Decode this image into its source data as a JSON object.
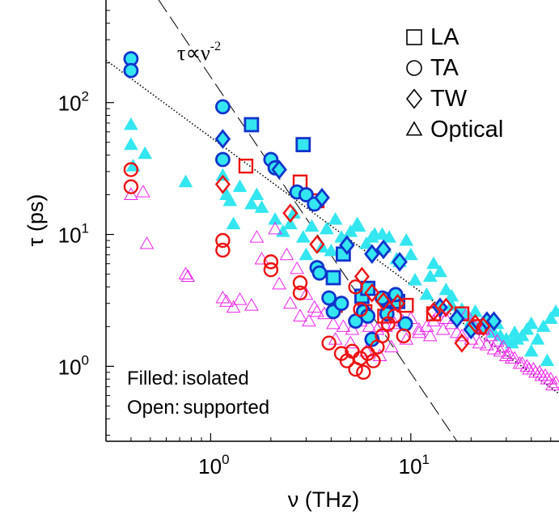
{
  "chart_data": {
    "type": "scatter",
    "xlabel": "ν (THz)",
    "ylabel": "τ (ps)",
    "x_scale": "log",
    "y_scale": "log",
    "xlim": [
      0.3,
      55
    ],
    "ylim": [
      0.27,
      600
    ],
    "x_ticks": [
      {
        "value": 1,
        "base": "10",
        "exp": "0"
      },
      {
        "value": 10,
        "base": "10",
        "exp": "1"
      }
    ],
    "y_ticks": [
      {
        "value": 1,
        "base": "10",
        "exp": "0"
      },
      {
        "value": 10,
        "base": "10",
        "exp": "1"
      },
      {
        "value": 100,
        "base": "10",
        "exp": "2"
      }
    ],
    "grid": false,
    "legend_position": "top-right",
    "legend": [
      {
        "marker": "square",
        "label": "LA"
      },
      {
        "marker": "circle",
        "label": "TA"
      },
      {
        "marker": "diamond",
        "label": "TW"
      },
      {
        "marker": "triangle",
        "label": "Optical"
      }
    ],
    "notes": [
      {
        "key": "Filled",
        "sep": ":",
        "value": "isolated"
      },
      {
        "key": "Open",
        "sep": ":",
        "value": "supported"
      }
    ],
    "annotation": {
      "text": "τ∝ν",
      "exp": "-2"
    },
    "colors": {
      "isolated_fill": "#33e6f0",
      "isolated_edge": "#1133cc",
      "supported_edge": "#ee1111",
      "optical_isolated": "#33e6f0",
      "optical_supported": "#ee22ee",
      "axis": "#000000"
    },
    "reference_lines": [
      {
        "name": "τ ∝ ν^-2",
        "style": "dashed",
        "points": [
          [
            0.55,
            600
          ],
          [
            17,
            0.27
          ]
        ]
      },
      {
        "name": "fit",
        "style": "dotted",
        "points": [
          [
            0.3,
            210
          ],
          [
            55,
            0.62
          ]
        ]
      }
    ],
    "series": [
      {
        "name": "LA",
        "marker": "square",
        "fill": "filled",
        "group": "isolated",
        "x": [
          1.6,
          2.9,
          4.1,
          4.6,
          5.7,
          6.1,
          7.7,
          8.6
        ],
        "y": [
          68,
          48,
          4.7,
          7.1,
          3.4,
          3.9,
          3.2,
          3.1
        ]
      },
      {
        "name": "LA",
        "marker": "square",
        "fill": "open",
        "group": "supported",
        "x": [
          1.5,
          2.8,
          3.4,
          4.2,
          5.9,
          7.4,
          9.5,
          13,
          18,
          22
        ],
        "y": [
          33,
          25,
          18,
          2.9,
          2.6,
          2.4,
          2.9,
          2.5,
          2.5,
          2.0
        ]
      },
      {
        "name": "TA",
        "marker": "circle",
        "fill": "filled",
        "group": "isolated",
        "x": [
          0.4,
          0.4,
          1.15,
          1.15,
          2.0,
          2.1,
          2.7,
          3.0,
          3.3,
          3.4,
          3.5,
          3.9,
          4.1,
          4.5,
          5.3,
          5.8,
          6.1,
          6.4,
          7.2,
          7.6,
          8.4,
          9.4
        ],
        "y": [
          215,
          175,
          93,
          37,
          37,
          32,
          21,
          20,
          17,
          5.6,
          5.1,
          3.3,
          2.6,
          3.0,
          2.2,
          2.6,
          2.4,
          1.6,
          3.3,
          2.5,
          3.5,
          2.1
        ]
      },
      {
        "name": "TA",
        "marker": "circle",
        "fill": "open",
        "group": "supported",
        "x": [
          0.4,
          0.4,
          1.15,
          1.15,
          2.0,
          2.0,
          2.8,
          2.8,
          3.9,
          4.5,
          4.8,
          5.1,
          5.3,
          5.6,
          5.8,
          6.1,
          6.5,
          6.8,
          7.2,
          7.7,
          8.3,
          9.2,
          5.6,
          5.3
        ],
        "y": [
          31,
          23,
          9.0,
          7.6,
          6.2,
          5.4,
          4.3,
          3.6,
          1.5,
          1.25,
          1.1,
          1.3,
          0.95,
          1.15,
          0.9,
          1.25,
          1.1,
          1.4,
          1.7,
          2.1,
          2.4,
          1.7,
          2.7,
          4.0
        ]
      },
      {
        "name": "TW",
        "marker": "diamond",
        "fill": "filled",
        "group": "isolated",
        "x": [
          1.15,
          2.2,
          3.6,
          4.8,
          6.4,
          7.3,
          8.8,
          14,
          17,
          20,
          24,
          26
        ],
        "y": [
          53,
          31,
          19,
          8.3,
          7.1,
          7.7,
          6.2,
          2.8,
          2.3,
          1.9,
          2.2,
          2.2
        ]
      },
      {
        "name": "TW",
        "marker": "diamond",
        "fill": "open",
        "group": "supported",
        "x": [
          1.15,
          2.5,
          3.4,
          5.7,
          6.4,
          7.3,
          8.6,
          13,
          15,
          18,
          21,
          23
        ],
        "y": [
          24,
          14.5,
          8.4,
          4.8,
          3.6,
          3.1,
          3.0,
          2.6,
          2.8,
          1.5,
          2.1,
          2.0
        ]
      },
      {
        "name": "Optical",
        "marker": "triangle",
        "fill": "filled",
        "group": "isolated",
        "x": [
          0.4,
          0.4,
          0.41,
          0.47,
          0.75,
          1.15,
          1.2,
          1.25,
          1.4,
          1.6,
          1.8,
          2.1,
          2.5,
          2.9,
          3.2,
          3.6,
          4.0,
          4.5,
          5.0,
          5.5,
          6.0,
          6.6,
          7.2,
          7.8,
          8.5,
          9.5,
          10.5,
          12,
          13,
          14,
          15,
          16,
          17,
          18,
          19,
          20,
          22,
          24,
          26,
          28,
          30,
          32,
          34,
          36,
          38,
          40,
          43,
          46,
          50,
          53,
          1.3,
          1.7,
          2.3,
          3.0,
          3.8,
          4.6,
          5.4,
          6.4,
          7.4,
          8.8,
          10,
          12.5,
          16,
          21,
          27,
          33,
          40,
          48,
          2.6,
          4.2
        ],
        "y": [
          68,
          48,
          33,
          41,
          25,
          28,
          20,
          18,
          23,
          17,
          16,
          13,
          12,
          9.5,
          11.5,
          8.0,
          7.5,
          9.5,
          10.5,
          11.5,
          8.5,
          10,
          10,
          9.5,
          6.5,
          9.0,
          4.5,
          3.5,
          6.0,
          5.2,
          3.8,
          2.9,
          2.5,
          2.7,
          2.4,
          2.2,
          2.0,
          1.9,
          1.8,
          1.7,
          1.6,
          1.5,
          1.6,
          1.7,
          1.9,
          2.1,
          1.6,
          2.0,
          2.3,
          2.6,
          12,
          20,
          10.5,
          7.0,
          11,
          7.8,
          12,
          9.5,
          8.0,
          6.2,
          7.0,
          4.8,
          3.4,
          2.6,
          2.1,
          1.8,
          1.3,
          1.1,
          14.5,
          13
        ]
      },
      {
        "name": "Optical",
        "marker": "triangle",
        "fill": "open",
        "group": "supported",
        "x": [
          0.4,
          0.46,
          0.48,
          0.75,
          0.77,
          1.15,
          1.2,
          1.3,
          1.4,
          1.6,
          1.8,
          2.1,
          2.4,
          2.7,
          3.0,
          3.3,
          3.7,
          4.1,
          4.6,
          5.1,
          5.6,
          6.2,
          6.8,
          7.5,
          8.3,
          9.1,
          10,
          11,
          12,
          13,
          14,
          15,
          16,
          17,
          18,
          20,
          22,
          24,
          26,
          28,
          30,
          32,
          35,
          38,
          41,
          44,
          47,
          50,
          53,
          1.7,
          2.2,
          2.8,
          3.4,
          4.2,
          5.0,
          6.0,
          7.0,
          8.0,
          9.5,
          11,
          12.5,
          14.5,
          17,
          19,
          21,
          23,
          25,
          27,
          29,
          31,
          33,
          36,
          39,
          42,
          45,
          48,
          51,
          2.5,
          3.1
        ],
        "y": [
          20,
          21,
          8.5,
          5.0,
          4.8,
          3.3,
          3.1,
          2.8,
          3.2,
          2.9,
          6.5,
          11,
          7.0,
          5.5,
          3.5,
          2.8,
          2.5,
          2.1,
          2.0,
          1.9,
          2.2,
          2.0,
          1.9,
          2.0,
          2.1,
          2.2,
          2.3,
          1.9,
          2.0,
          2.2,
          2.6,
          2.3,
          2.1,
          1.8,
          1.7,
          1.6,
          1.5,
          1.45,
          1.35,
          1.3,
          1.2,
          1.15,
          1.05,
          1.0,
          0.95,
          0.9,
          0.85,
          0.8,
          0.75,
          9.5,
          4.2,
          2.4,
          2.6,
          1.6,
          1.5,
          1.3,
          1.2,
          1.4,
          1.6,
          1.8,
          1.7,
          1.9,
          2.4,
          2.5,
          2.0,
          1.9,
          1.7,
          1.55,
          1.4,
          1.25,
          1.15,
          1.05,
          0.95,
          0.9,
          0.85,
          0.8,
          0.72,
          3.0,
          2.2
        ]
      }
    ]
  }
}
